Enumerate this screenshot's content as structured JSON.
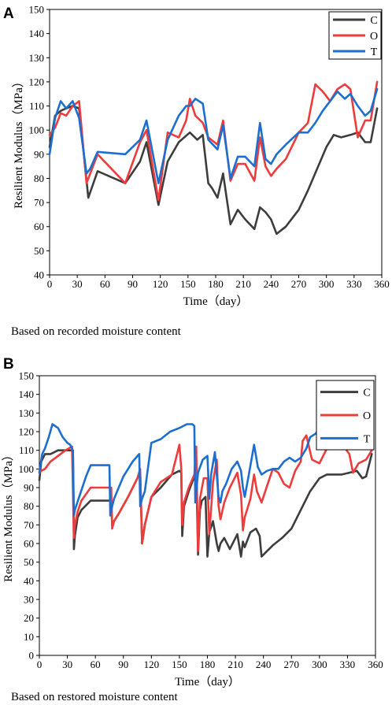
{
  "colors": {
    "C": "#3d3d3d",
    "O": "#ee3b3b",
    "T": "#1c6fd0"
  },
  "chart_data": [
    {
      "panel": "A",
      "type": "line",
      "caption": "Based on recorded moisture content",
      "xlabel": "Time（day）",
      "ylabel": "Resilient Modulus（MPa）",
      "xlim": [
        0,
        360
      ],
      "ylim": [
        40,
        150
      ],
      "xticks": [
        0,
        30,
        60,
        90,
        120,
        150,
        180,
        210,
        240,
        270,
        300,
        330,
        360
      ],
      "yticks": [
        40,
        50,
        60,
        70,
        80,
        90,
        100,
        110,
        120,
        130,
        140,
        150
      ],
      "grid": false,
      "legend_position": "top-right",
      "series": [
        {
          "name": "C",
          "x": [
            0,
            6,
            12,
            18,
            25,
            32,
            42,
            52,
            82,
            98,
            105,
            118,
            128,
            140,
            152,
            160,
            166,
            172,
            176,
            182,
            188,
            196,
            204,
            212,
            222,
            228,
            234,
            240,
            246,
            256,
            270,
            280,
            290,
            300,
            308,
            316,
            326,
            334,
            342,
            348,
            355
          ],
          "y": [
            93,
            106,
            108,
            109,
            110,
            109,
            72,
            83,
            78,
            87,
            95,
            69,
            87,
            95,
            99,
            96,
            98,
            78,
            76,
            72,
            82,
            61,
            67,
            63,
            59,
            68,
            66,
            63,
            57,
            60,
            67,
            75,
            84,
            93,
            98,
            97,
            98,
            99,
            95,
            95,
            109
          ]
        },
        {
          "name": "O",
          "x": [
            0,
            6,
            12,
            18,
            25,
            32,
            40,
            44,
            52,
            82,
            98,
            105,
            118,
            128,
            140,
            148,
            152,
            158,
            166,
            172,
            182,
            188,
            196,
            204,
            212,
            222,
            228,
            234,
            240,
            246,
            256,
            270,
            280,
            288,
            296,
            304,
            312,
            320,
            326,
            334,
            342,
            348,
            355
          ],
          "y": [
            98,
            101,
            107,
            106,
            110,
            112,
            78,
            82,
            90,
            78,
            95,
            100,
            71,
            99,
            97,
            104,
            113,
            106,
            103,
            97,
            94,
            104,
            79,
            86,
            86,
            79,
            97,
            85,
            81,
            84,
            88,
            99,
            103,
            119,
            116,
            112,
            117,
            119,
            117,
            97,
            104,
            104,
            120
          ]
        },
        {
          "name": "T",
          "x": [
            0,
            6,
            12,
            18,
            25,
            32,
            40,
            44,
            52,
            82,
            98,
            105,
            118,
            128,
            140,
            148,
            152,
            158,
            166,
            172,
            182,
            188,
            196,
            204,
            212,
            222,
            228,
            234,
            240,
            246,
            256,
            270,
            280,
            288,
            296,
            304,
            312,
            320,
            326,
            334,
            342,
            348,
            355
          ],
          "y": [
            90,
            105,
            112,
            109,
            112,
            105,
            82,
            84,
            91,
            90,
            96,
            104,
            78,
            96,
            106,
            110,
            110,
            113,
            111,
            96,
            92,
            102,
            80,
            89,
            89,
            85,
            103,
            88,
            86,
            90,
            94,
            99,
            99,
            103,
            108,
            112,
            116,
            113,
            115,
            110,
            106,
            108,
            117
          ]
        }
      ]
    },
    {
      "panel": "B",
      "type": "line",
      "caption": "Based on restored moisture content",
      "xlabel": "Time（day）",
      "ylabel": "Resilient Modulus（MPa）",
      "xlim": [
        0,
        360
      ],
      "ylim": [
        0,
        150
      ],
      "xticks": [
        0,
        30,
        60,
        90,
        120,
        150,
        180,
        210,
        240,
        270,
        300,
        330,
        360
      ],
      "yticks": [
        0,
        10,
        20,
        30,
        40,
        50,
        60,
        70,
        80,
        90,
        100,
        110,
        120,
        130,
        140,
        150
      ],
      "grid": false,
      "legend_position": "top-right",
      "series": [
        {
          "name": "C",
          "x": [
            0,
            2,
            6,
            12,
            20,
            28,
            36,
            37,
            38,
            41,
            45,
            55,
            77,
            78,
            80,
            85,
            95,
            105,
            108,
            110,
            113,
            120,
            130,
            142,
            150,
            152,
            153,
            155,
            160,
            166,
            168,
            170,
            172,
            174,
            178,
            180,
            182,
            186,
            190,
            192,
            194,
            198,
            204,
            212,
            216,
            218,
            220,
            226,
            232,
            236,
            238,
            242,
            250,
            260,
            270,
            280,
            290,
            300,
            308,
            316,
            324,
            332,
            340,
            346,
            350,
            356
          ],
          "y": [
            94,
            104,
            108,
            108,
            110,
            110,
            110,
            57,
            64,
            74,
            78,
            83,
            83,
            70,
            72,
            76,
            85,
            95,
            98,
            60,
            70,
            85,
            90,
            97,
            99,
            98,
            64,
            80,
            88,
            96,
            100,
            54,
            78,
            83,
            85,
            53,
            66,
            72,
            60,
            56,
            60,
            63,
            57,
            65,
            53,
            61,
            58,
            66,
            68,
            64,
            53,
            55,
            59,
            63,
            68,
            78,
            88,
            95,
            97,
            97,
            97,
            98,
            99,
            95,
            96,
            108
          ]
        },
        {
          "name": "O",
          "x": [
            0,
            2,
            6,
            12,
            20,
            28,
            35,
            37,
            38,
            41,
            45,
            55,
            77,
            78,
            80,
            85,
            95,
            105,
            108,
            110,
            113,
            120,
            130,
            142,
            150,
            152,
            153,
            155,
            160,
            166,
            168,
            170,
            172,
            176,
            180,
            182,
            186,
            190,
            192,
            194,
            198,
            204,
            212,
            216,
            218,
            220,
            226,
            230,
            233,
            238,
            242,
            250,
            256,
            262,
            268,
            274,
            280,
            282,
            286,
            292,
            300,
            310,
            316,
            322,
            326,
            332,
            336,
            342,
            350,
            356
          ],
          "y": [
            98,
            99,
            100,
            104,
            107,
            110,
            112,
            63,
            70,
            77,
            83,
            90,
            90,
            68,
            72,
            76,
            85,
            95,
            100,
            60,
            70,
            85,
            93,
            97,
            113,
            100,
            70,
            82,
            90,
            97,
            112,
            56,
            84,
            95,
            95,
            65,
            93,
            105,
            80,
            73,
            82,
            90,
            98,
            86,
            67,
            74,
            84,
            97,
            88,
            82,
            88,
            100,
            98,
            92,
            90,
            99,
            104,
            115,
            118,
            105,
            103,
            113,
            117,
            119,
            112,
            108,
            98,
            103,
            105,
            110
          ]
        },
        {
          "name": "T",
          "x": [
            0,
            3,
            6,
            10,
            14,
            20,
            25,
            30,
            33,
            35,
            36,
            37,
            38,
            42,
            50,
            55,
            60,
            75,
            76,
            78,
            80,
            85,
            90,
            100,
            107,
            108,
            110,
            113,
            120,
            130,
            140,
            150,
            158,
            164,
            166,
            167,
            168,
            170,
            175,
            180,
            182,
            184,
            188,
            192,
            194,
            196,
            200,
            206,
            212,
            216,
            218,
            220,
            224,
            230,
            234,
            238,
            244,
            250,
            256,
            262,
            268,
            274,
            280,
            286,
            290,
            296,
            302,
            310,
            320,
            330,
            340,
            350,
            356
          ],
          "y": [
            98,
            108,
            111,
            117,
            124,
            122,
            117,
            114,
            113,
            111,
            109,
            75,
            78,
            84,
            96,
            102,
            102,
            102,
            75,
            80,
            84,
            90,
            96,
            104,
            108,
            80,
            84,
            88,
            114,
            116,
            120,
            122,
            124,
            124,
            123,
            82,
            88,
            98,
            105,
            107,
            84,
            97,
            109,
            85,
            82,
            88,
            92,
            100,
            104,
            99,
            90,
            85,
            96,
            113,
            101,
            97,
            99,
            100,
            100,
            104,
            106,
            104,
            106,
            111,
            117,
            119,
            123,
            121,
            117,
            116,
            114,
            114,
            119
          ]
        }
      ]
    }
  ]
}
